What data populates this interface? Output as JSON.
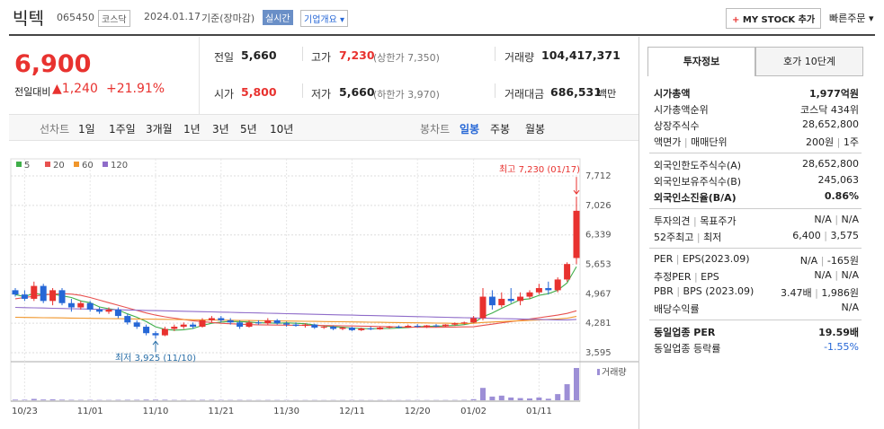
{
  "header": {
    "name": "빅텍",
    "code": "065450",
    "market": "코스닥",
    "date": "2024.01.17",
    "basis": "기준(장마감)",
    "realtime": "실시간",
    "company_button": "기업개요",
    "mystock_button": "MY STOCK 추가",
    "quick_order": "빠른주문"
  },
  "quote": {
    "price": "6,900",
    "change_label": "전일대비",
    "change": "1,240",
    "change_pct": "+21.91%",
    "prev": {
      "label": "전일",
      "value": "5,660"
    },
    "open": {
      "label": "시가",
      "value": "5,800"
    },
    "high": {
      "label": "고가",
      "value": "7,230",
      "limit": "(상한가 7,350)"
    },
    "low": {
      "label": "저가",
      "value": "5,660",
      "limit": "(하한가 3,970)"
    },
    "volume": {
      "label": "거래량",
      "value": "104,417,371"
    },
    "amount": {
      "label": "거래대금",
      "value": "686,531",
      "unit": "백만"
    }
  },
  "chart_tabs": {
    "line_label": "선차트",
    "line_periods": [
      "1일",
      "1주일",
      "3개월",
      "1년",
      "3년",
      "5년",
      "10년"
    ],
    "candle_label": "봉차트",
    "candle_periods": [
      "일봉",
      "주봉",
      "월봉"
    ],
    "active": "일봉"
  },
  "chart_data": {
    "type": "candlestick",
    "x": [
      null,
      "10/23",
      null,
      null,
      null,
      null,
      null,
      null,
      "11/01",
      null,
      null,
      null,
      null,
      null,
      null,
      "11/10",
      null,
      null,
      null,
      null,
      null,
      null,
      "11/21",
      null,
      null,
      null,
      null,
      null,
      null,
      "11/30",
      null,
      null,
      null,
      null,
      null,
      null,
      "12/11",
      null,
      null,
      null,
      null,
      null,
      null,
      "12/20",
      null,
      null,
      null,
      null,
      null,
      "01/02",
      null,
      null,
      null,
      null,
      null,
      null,
      "01/11",
      null,
      null,
      null,
      null
    ],
    "open": [
      5050,
      4950,
      4850,
      5150,
      4800,
      5050,
      4750,
      4650,
      4750,
      4600,
      4550,
      4600,
      4450,
      4300,
      4200,
      4050,
      4000,
      4150,
      4200,
      4250,
      4200,
      4350,
      4400,
      4350,
      4300,
      4200,
      4300,
      4280,
      4350,
      4280,
      4250,
      4220,
      4250,
      4180,
      4200,
      4150,
      4180,
      4120,
      4160,
      4140,
      4180,
      4200,
      4180,
      4220,
      4200,
      4230,
      4210,
      4250,
      4280,
      4300,
      4400,
      4900,
      4700,
      4850,
      4800,
      4900,
      5000,
      5100,
      5050,
      5300,
      5800
    ],
    "high": [
      5100,
      5050,
      5250,
      5200,
      5100,
      5100,
      4850,
      4800,
      4800,
      4650,
      4650,
      4650,
      4500,
      4350,
      4250,
      4100,
      4200,
      4250,
      4300,
      4300,
      4400,
      4450,
      4450,
      4400,
      4350,
      4350,
      4350,
      4400,
      4380,
      4320,
      4300,
      4280,
      4270,
      4220,
      4230,
      4200,
      4200,
      4180,
      4200,
      4200,
      4220,
      4230,
      4250,
      4260,
      4240,
      4260,
      4260,
      4300,
      4320,
      4450,
      5100,
      5050,
      5000,
      5100,
      5000,
      5050,
      5200,
      5250,
      5350,
      5700,
      7230
    ],
    "low": [
      4900,
      4800,
      4800,
      4750,
      4700,
      4700,
      4550,
      4600,
      4550,
      4500,
      4500,
      4400,
      4250,
      4150,
      4000,
      3925,
      3980,
      4100,
      4150,
      4150,
      4180,
      4300,
      4300,
      4250,
      4150,
      4180,
      4250,
      4250,
      4250,
      4200,
      4200,
      4180,
      4150,
      4150,
      4120,
      4120,
      4100,
      4100,
      4120,
      4130,
      4150,
      4160,
      4170,
      4180,
      4170,
      4190,
      4200,
      4220,
      4250,
      4280,
      4350,
      4600,
      4650,
      4750,
      4700,
      4850,
      4950,
      4950,
      5000,
      5250,
      5660
    ],
    "close": [
      4950,
      4850,
      5150,
      4800,
      5050,
      4750,
      4650,
      4750,
      4600,
      4550,
      4600,
      4450,
      4300,
      4200,
      4050,
      4000,
      4150,
      4200,
      4250,
      4200,
      4350,
      4400,
      4350,
      4300,
      4200,
      4300,
      4280,
      4350,
      4280,
      4250,
      4220,
      4250,
      4180,
      4200,
      4150,
      4180,
      4120,
      4160,
      4140,
      4180,
      4200,
      4180,
      4220,
      4200,
      4230,
      4210,
      4250,
      4280,
      4300,
      4400,
      4900,
      4700,
      4850,
      4800,
      4900,
      5000,
      5100,
      5050,
      5300,
      5660,
      6900
    ],
    "volume": [
      2100000,
      1800000,
      4500000,
      2500000,
      3200000,
      2000000,
      1500000,
      1200000,
      1300000,
      1100000,
      1000000,
      1400000,
      1600000,
      1500000,
      2200000,
      2000000,
      1800000,
      1200000,
      1100000,
      1000000,
      1500000,
      1300000,
      1100000,
      1000000,
      1200000,
      900000,
      800000,
      1000000,
      900000,
      800000,
      700000,
      800000,
      900000,
      700000,
      800000,
      700000,
      900000,
      800000,
      700000,
      900000,
      800000,
      700000,
      900000,
      800000,
      700000,
      800000,
      900000,
      1000000,
      1200000,
      3500000,
      40000000,
      12000000,
      15000000,
      9000000,
      7000000,
      6000000,
      9000000,
      5000000,
      20000000,
      52000000,
      104417371
    ],
    "volume_label": "거래량",
    "volume_color": "#9d8fd6",
    "up_color": "#e8322f",
    "down_color": "#2667d6",
    "ma_series": [
      {
        "name": "5",
        "color": "#3fae49",
        "values": [
          4950,
          4900,
          4980,
          4940,
          4960,
          4920,
          4880,
          4800,
          4760,
          4660,
          4620,
          4590,
          4500,
          4420,
          4320,
          4200,
          4140,
          4120,
          4130,
          4160,
          4230,
          4280,
          4310,
          4320,
          4320,
          4310,
          4290,
          4290,
          4280,
          4290,
          4280,
          4270,
          4240,
          4220,
          4200,
          4190,
          4170,
          4160,
          4150,
          4160,
          4160,
          4170,
          4180,
          4200,
          4210,
          4210,
          4220,
          4230,
          4250,
          4290,
          4430,
          4520,
          4630,
          4730,
          4830,
          4850,
          4930,
          4970,
          5050,
          5220,
          5600
        ]
      },
      {
        "name": "20",
        "color": "#e8514f",
        "values": [
          4850,
          4880,
          4910,
          4940,
          4960,
          4970,
          4960,
          4930,
          4880,
          4820,
          4760,
          4700,
          4640,
          4580,
          4520,
          4470,
          4430,
          4400,
          4370,
          4340,
          4320,
          4300,
          4280,
          4270,
          4260,
          4250,
          4245,
          4240,
          4238,
          4236,
          4234,
          4232,
          4230,
          4228,
          4225,
          4222,
          4218,
          4214,
          4210,
          4205,
          4200,
          4195,
          4190,
          4188,
          4186,
          4186,
          4188,
          4192,
          4196,
          4200,
          4230,
          4260,
          4290,
          4320,
          4350,
          4380,
          4410,
          4440,
          4470,
          4510,
          4570
        ]
      },
      {
        "name": "60",
        "color": "#f0962b",
        "values": [
          4420,
          4417,
          4414,
          4411,
          4408,
          4405,
          4402,
          4399,
          4396,
          4393,
          4390,
          4387,
          4384,
          4381,
          4378,
          4375,
          4372,
          4369,
          4366,
          4363,
          4360,
          4357,
          4354,
          4351,
          4348,
          4345,
          4342,
          4339,
          4336,
          4333,
          4330,
          4327,
          4324,
          4321,
          4318,
          4315,
          4312,
          4309,
          4306,
          4303,
          4300,
          4297,
          4294,
          4291,
          4288,
          4285,
          4282,
          4279,
          4276,
          4280,
          4300,
          4310,
          4320,
          4330,
          4340,
          4350,
          4360,
          4370,
          4380,
          4400,
          4440
        ]
      },
      {
        "name": "120",
        "color": "#8f6cc9",
        "values": [
          4650,
          4645,
          4640,
          4635,
          4630,
          4625,
          4620,
          4615,
          4610,
          4605,
          4600,
          4595,
          4590,
          4585,
          4580,
          4575,
          4570,
          4565,
          4560,
          4555,
          4550,
          4545,
          4540,
          4535,
          4530,
          4525,
          4520,
          4515,
          4510,
          4505,
          4500,
          4495,
          4490,
          4485,
          4480,
          4475,
          4470,
          4465,
          4460,
          4455,
          4450,
          4445,
          4440,
          4435,
          4430,
          4425,
          4420,
          4415,
          4410,
          4405,
          4400,
          4395,
          4390,
          4385,
          4380,
          4375,
          4370,
          4365,
          4360,
          4360,
          4370
        ]
      }
    ],
    "ylim": [
      3595,
      7712
    ],
    "yticks": [
      {
        "value": 7712,
        "label": "7,712"
      },
      {
        "value": 7026,
        "label": "7,026"
      },
      {
        "value": 6339,
        "label": "6,339"
      },
      {
        "value": 5653,
        "label": "5,653"
      },
      {
        "value": 4967,
        "label": "4,967"
      },
      {
        "value": 4281,
        "label": "4,281"
      },
      {
        "value": 3595,
        "label": "3,595"
      }
    ],
    "grid": true,
    "annotations": [
      {
        "text": "최고 7,230 (01/17)",
        "index": 60,
        "kind": "high"
      },
      {
        "text": "최저 3,925 (11/10)",
        "index": 15,
        "kind": "low"
      }
    ]
  },
  "invest_info": {
    "tabs": [
      "투자정보",
      "호가 10단계"
    ],
    "groups": [
      [
        {
          "labels": [
            "시가총액"
          ],
          "values": [
            "1,977억원"
          ]
        },
        {
          "labels": [
            "시가총액순위"
          ],
          "values": [
            "코스닥 434위"
          ]
        },
        {
          "labels": [
            "상장주식수"
          ],
          "values": [
            "28,652,800"
          ]
        },
        {
          "labels": [
            "액면가",
            "매매단위"
          ],
          "values": [
            "200원",
            "1주"
          ]
        }
      ],
      [
        {
          "labels": [
            "외국인한도주식수(A)"
          ],
          "values": [
            "28,652,800"
          ]
        },
        {
          "labels": [
            "외국인보유주식수(B)"
          ],
          "values": [
            "245,063"
          ]
        },
        {
          "labels": [
            "외국인소진율(B/A)"
          ],
          "values": [
            "0.86%"
          ]
        }
      ],
      [
        {
          "labels": [
            "투자의견",
            "목표주가"
          ],
          "values": [
            "N/A",
            "N/A"
          ]
        },
        {
          "labels": [
            "52주최고",
            "최저"
          ],
          "values": [
            "6,400",
            "3,575"
          ]
        }
      ],
      [
        {
          "labels": [
            "PER",
            "EPS(2023.09)"
          ],
          "values": [
            "N/A",
            "-165원"
          ]
        },
        {
          "labels": [
            "추정PER",
            "EPS"
          ],
          "values": [
            "N/A",
            "N/A"
          ]
        },
        {
          "labels": [
            "PBR",
            "BPS (2023.09)"
          ],
          "values": [
            "3.47배",
            "1,986원"
          ]
        },
        {
          "labels": [
            "배당수익률"
          ],
          "values": [
            "N/A"
          ]
        }
      ],
      [
        {
          "labels": [
            "동일업종 PER"
          ],
          "values": [
            "19.59배"
          ]
        },
        {
          "labels": [
            "동일업종 등락률"
          ],
          "values": [
            "-1.55%"
          ]
        }
      ]
    ]
  }
}
